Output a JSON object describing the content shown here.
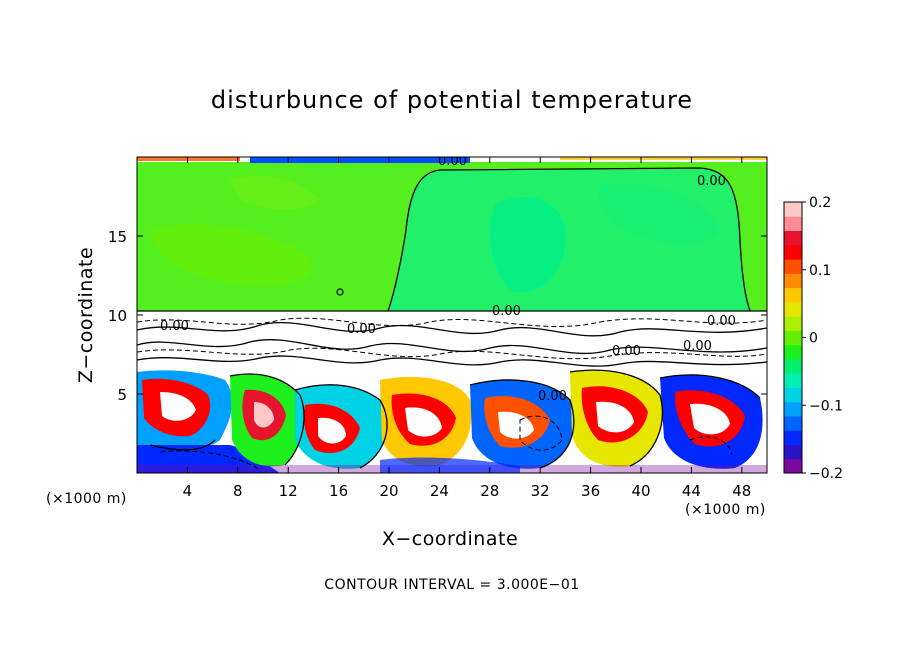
{
  "chart_data": {
    "type": "heatmap",
    "title": "disturbunce of potential temperature",
    "xlabel": "X−coordinate",
    "ylabel": "Z−coordinate",
    "x_unit": "(×1000 m)",
    "y_unit": "(×1000 m)",
    "xlim": [
      0,
      50
    ],
    "ylim": [
      0,
      20
    ],
    "x_ticks": [
      4,
      8,
      12,
      16,
      20,
      24,
      28,
      32,
      36,
      40,
      44,
      48
    ],
    "y_ticks": [
      5,
      10,
      15
    ],
    "colorbar": {
      "range": [
        -0.2,
        0.2
      ],
      "ticks": [
        0.2,
        0.1,
        0,
        -0.1,
        -0.2
      ],
      "tick_labels": [
        "0.2",
        "0.1",
        "0",
        "−0.1",
        "−0.2"
      ],
      "colors": [
        "#7d0aa0",
        "#2a14c8",
        "#0028ff",
        "#0064ff",
        "#00a0ff",
        "#00d2e6",
        "#00f0b4",
        "#00f06e",
        "#1ef01e",
        "#64f000",
        "#aaf000",
        "#e6e600",
        "#ffc800",
        "#ff8c00",
        "#ff5000",
        "#ff0000",
        "#e6142d",
        "#ff8c96",
        "#ffc8c8"
      ]
    },
    "contour_labels": [
      "0.00",
      "0.00",
      "0.00",
      "0.00",
      "0.00",
      "0.00",
      "0.00",
      "0.00",
      "0.00"
    ],
    "footnote": "CONTOUR INTERVAL = 3.000E−01"
  }
}
